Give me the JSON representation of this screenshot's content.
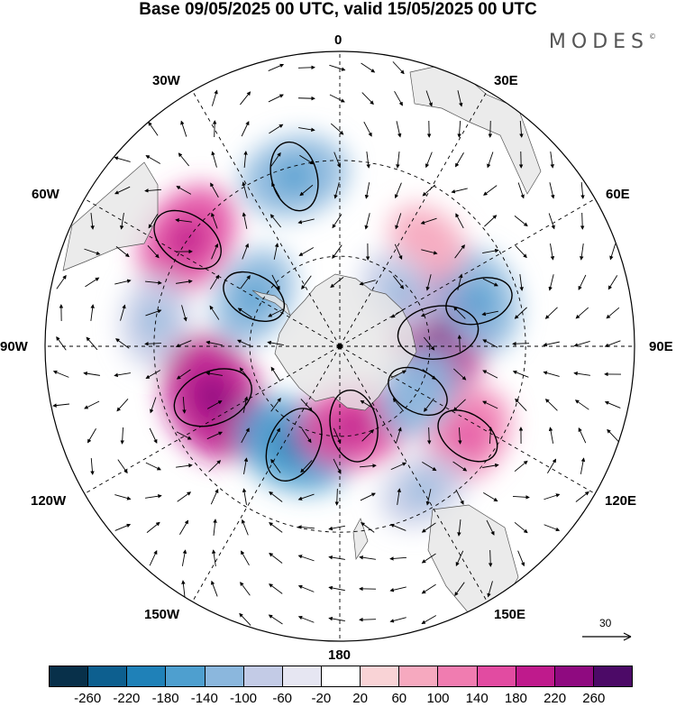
{
  "title": "Base 09/05/2025 00 UTC, valid 15/05/2025 00 UTC",
  "brand": "MODES",
  "brand_mark": "©",
  "longitude_labels": {
    "top": "0",
    "top_right": "30E",
    "right_upper": "60E",
    "right": "90E",
    "right_lower": "120E",
    "bottom_right": "150E",
    "bottom": "180",
    "bottom_left": "150W",
    "left_lower": "120W",
    "left": "90W",
    "left_upper": "60W",
    "top_left": "30W"
  },
  "reference_vector": {
    "label": "30"
  },
  "colorbar": {
    "colors": [
      "#08304a",
      "#0d5f8f",
      "#1f81b8",
      "#4e9fcf",
      "#8bb7dd",
      "#c3cbe6",
      "#e6e6f2",
      "#ffffff",
      "#f9d3d6",
      "#f6a9bf",
      "#f07cb0",
      "#e24ba1",
      "#bf1a8c",
      "#8f0a80",
      "#4c0a67"
    ],
    "ticks": [
      "-260",
      "-220",
      "-180",
      "-140",
      "-100",
      "-60",
      "-20",
      "20",
      "60",
      "100",
      "140",
      "180",
      "220",
      "260"
    ]
  },
  "map": {
    "projection": "south polar stereographic",
    "field": "anomaly shading with wind vectors",
    "continents_color": "#e6e6e6",
    "anomalies": [
      {
        "lon": -15,
        "colat": 38,
        "value": -140
      },
      {
        "lon": -55,
        "colat": 40,
        "value": 160
      },
      {
        "lon": -82,
        "colat": 40,
        "value": -100
      },
      {
        "lon": -60,
        "colat": 22,
        "value": -120
      },
      {
        "lon": -112,
        "colat": 30,
        "value": 190
      },
      {
        "lon": -155,
        "colat": 24,
        "value": -170
      },
      {
        "lon": 170,
        "colat": 18,
        "value": 150
      },
      {
        "lon": 125,
        "colat": 34,
        "value": 120
      },
      {
        "lon": 82,
        "colat": 22,
        "value": 190
      },
      {
        "lon": 72,
        "colat": 32,
        "value": -130
      },
      {
        "lon": 40,
        "colat": 30,
        "value": 80
      },
      {
        "lon": 48,
        "colat": 18,
        "value": -90
      },
      {
        "lon": 120,
        "colat": 20,
        "value": -110
      },
      {
        "lon": 150,
        "colat": 36,
        "value": -90
      }
    ]
  }
}
